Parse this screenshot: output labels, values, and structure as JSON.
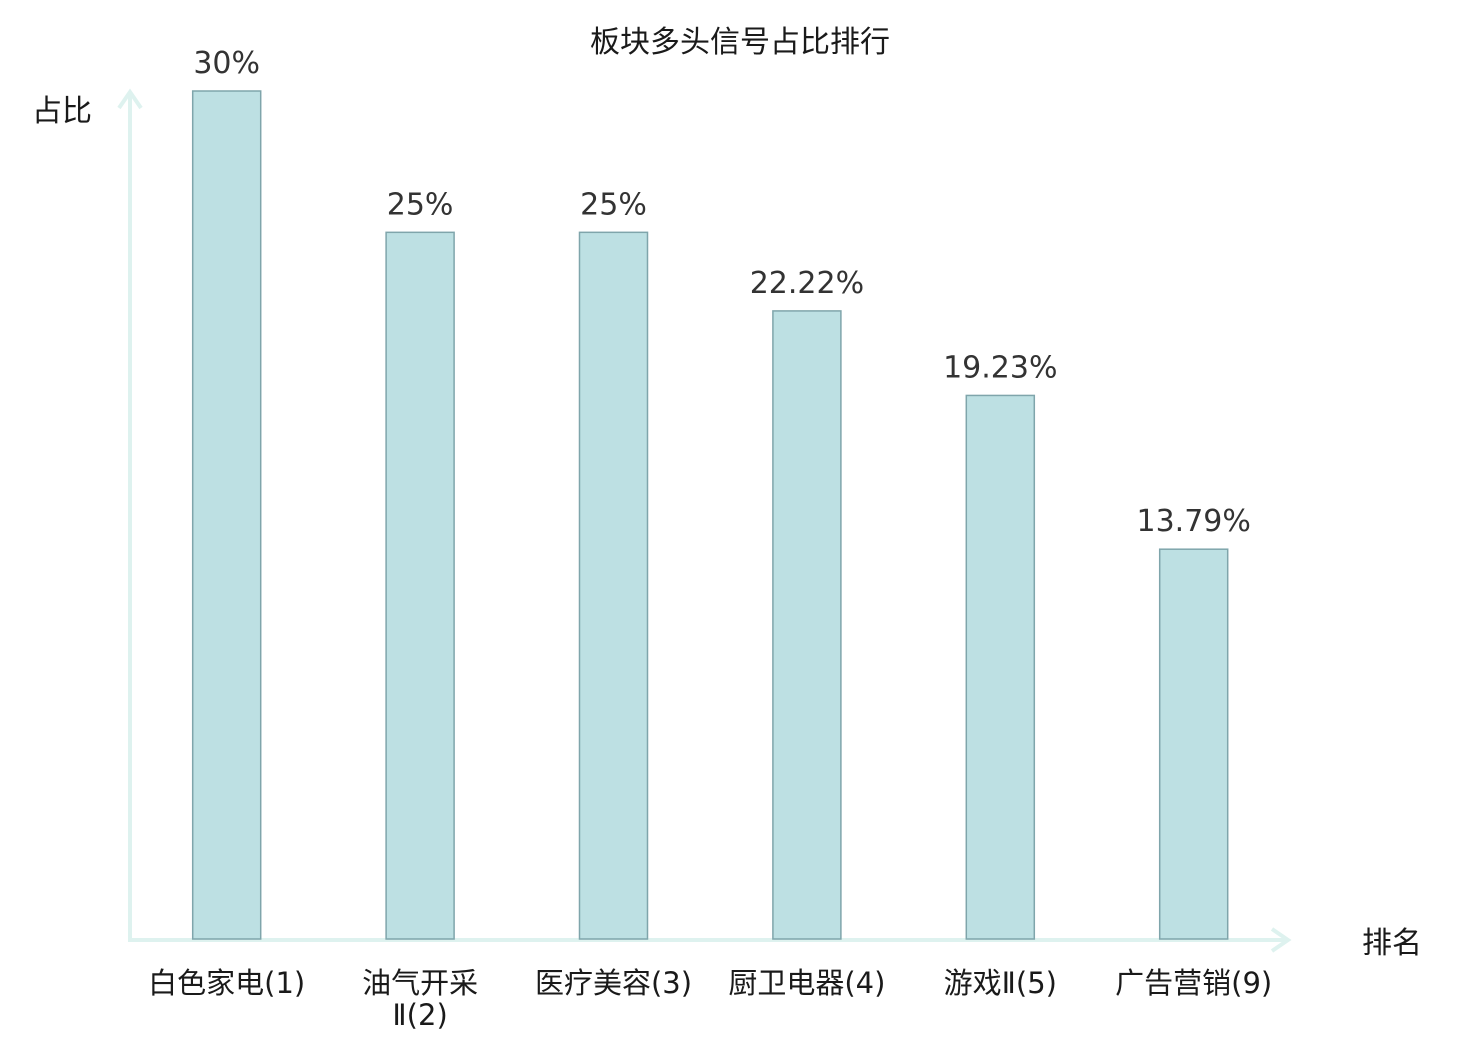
{
  "chart_data": {
    "type": "bar",
    "title": "板块多头信号占比排行",
    "xlabel": "排名",
    "ylabel": "占比",
    "categories": [
      [
        "白色家电(1)"
      ],
      [
        "油气开采",
        "Ⅱ(2)"
      ],
      [
        "医疗美容(3)"
      ],
      [
        "厨卫电器(4)"
      ],
      [
        "游戏Ⅱ(5)"
      ],
      [
        "广告营销(9)"
      ]
    ],
    "values": [
      30,
      25,
      25,
      22.22,
      19.23,
      13.79
    ],
    "value_labels": [
      "30%",
      "25%",
      "25%",
      "22.22%",
      "19.23%",
      "13.79%"
    ],
    "ylim": [
      0,
      30
    ],
    "grid": false,
    "legend": "none",
    "colors": {
      "bar_fill": "#bde0e3",
      "bar_stroke": "#7fa5ab",
      "axis": "#def2ef",
      "highlight_label": "#e01515",
      "text": "#1a1a1a"
    },
    "highlight_indices": [
      5
    ]
  }
}
